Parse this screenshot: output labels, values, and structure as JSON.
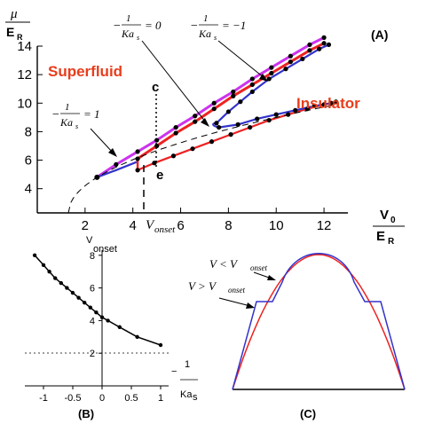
{
  "chart_data": [
    {
      "panel": "(A)",
      "type": "line",
      "x_tick_labels": [
        "2",
        "4",
        "6",
        "8",
        "10",
        "12"
      ],
      "y_tick_labels": [
        "4",
        "6",
        "8",
        "10",
        "12",
        "14"
      ],
      "xlim": [
        0,
        13
      ],
      "ylim": [
        2.3,
        14
      ],
      "xlabel": {
        "num": "V",
        "sub": "0",
        "den": "E",
        "den_sub": "R"
      },
      "ylabel": {
        "num": "μ",
        "den": "E",
        "den_sub": "R"
      },
      "region_labels": {
        "superfluid": "Superfluid",
        "insulator": "Insulator"
      },
      "point_labels": {
        "c": "c",
        "e": "e"
      },
      "vonset_label": "V",
      "vonset_sub": "onset",
      "annotations": [
        {
          "lhs": "−",
          "num": "1",
          "den": "Ka",
          "den_sub": "s",
          "rhs": "= 1"
        },
        {
          "lhs": "−",
          "num": "1",
          "den": "Ka",
          "den_sub": "s",
          "rhs": "= 0"
        },
        {
          "lhs": "−",
          "num": "1",
          "den": "Ka",
          "den_sub": "s",
          "rhs": "= −1"
        }
      ],
      "colors": {
        "magenta": "#cc33ee",
        "red": "#ee2222",
        "blue": "#3333cc",
        "black": "#000000"
      },
      "series": [
        {
          "color": "magenta",
          "x": [
            2.5,
            3.3,
            4.2,
            5.0,
            5.8,
            6.6,
            7.4,
            8.2,
            9.0,
            9.8,
            10.6,
            11.4,
            12.0
          ],
          "y": [
            4.8,
            5.7,
            6.6,
            7.4,
            8.3,
            9.1,
            10.0,
            10.8,
            11.7,
            12.5,
            13.3,
            14.1,
            14.6
          ]
        },
        {
          "color": "red",
          "x": [
            4.2,
            5.0,
            5.8,
            6.6,
            7.4,
            8.2,
            9.0,
            9.8,
            10.6,
            11.4,
            12.0
          ],
          "y": [
            6.1,
            7.0,
            7.9,
            8.7,
            9.6,
            10.5,
            11.3,
            12.1,
            12.9,
            13.7,
            14.2
          ]
        },
        {
          "color": "blue",
          "x": [
            7.5,
            8.0,
            8.5,
            9.0,
            9.7,
            10.4,
            11.1,
            11.8,
            12.2
          ],
          "y": [
            8.6,
            9.4,
            10.1,
            10.8,
            11.7,
            12.4,
            13.1,
            13.8,
            14.1
          ]
        },
        {
          "color": "red",
          "x": [
            4.2,
            4.9,
            5.7,
            6.5,
            7.3,
            8.1,
            8.9,
            9.7,
            10.5,
            11.3,
            12.0,
            12.5
          ],
          "y": [
            5.3,
            5.8,
            6.3,
            6.8,
            7.3,
            7.8,
            8.3,
            8.8,
            9.2,
            9.6,
            9.9,
            10.1
          ]
        },
        {
          "color": "blue",
          "x": [
            7.6,
            8.4,
            9.2,
            10.0,
            10.8,
            11.6,
            12.3
          ],
          "y": [
            8.3,
            8.5,
            8.9,
            9.2,
            9.5,
            9.8,
            10.0
          ]
        },
        {
          "color": "blue",
          "x": [
            2.5,
            3.3,
            4.2
          ],
          "y": [
            4.8,
            5.3,
            5.9
          ]
        }
      ]
    },
    {
      "panel": "(B)",
      "type": "line",
      "x": [
        -1.15,
        -1.0,
        -0.9,
        -0.8,
        -0.7,
        -0.6,
        -0.5,
        -0.4,
        -0.3,
        -0.2,
        -0.1,
        0.0,
        0.1,
        0.3,
        0.6,
        1.0
      ],
      "y": [
        8.0,
        7.4,
        7.0,
        6.6,
        6.3,
        6.0,
        5.7,
        5.4,
        5.1,
        4.8,
        4.5,
        4.2,
        4.0,
        3.6,
        3.0,
        2.5
      ],
      "x_tick_labels": [
        "-1",
        "-0.5",
        "0",
        "0.5",
        "1"
      ],
      "y_tick_labels": [
        "2",
        "4",
        "6",
        "8"
      ],
      "reference_line_y": 2.1,
      "ylabel": "V",
      "ylabel_sub": "onset",
      "xlabel": {
        "lhs": "−",
        "num": "1",
        "den": "Ka",
        "den_sub": "s"
      }
    },
    {
      "panel": "(C)",
      "type": "line",
      "labels": {
        "below": "V < V",
        "above": "V > V",
        "sub": "onset"
      }
    }
  ]
}
